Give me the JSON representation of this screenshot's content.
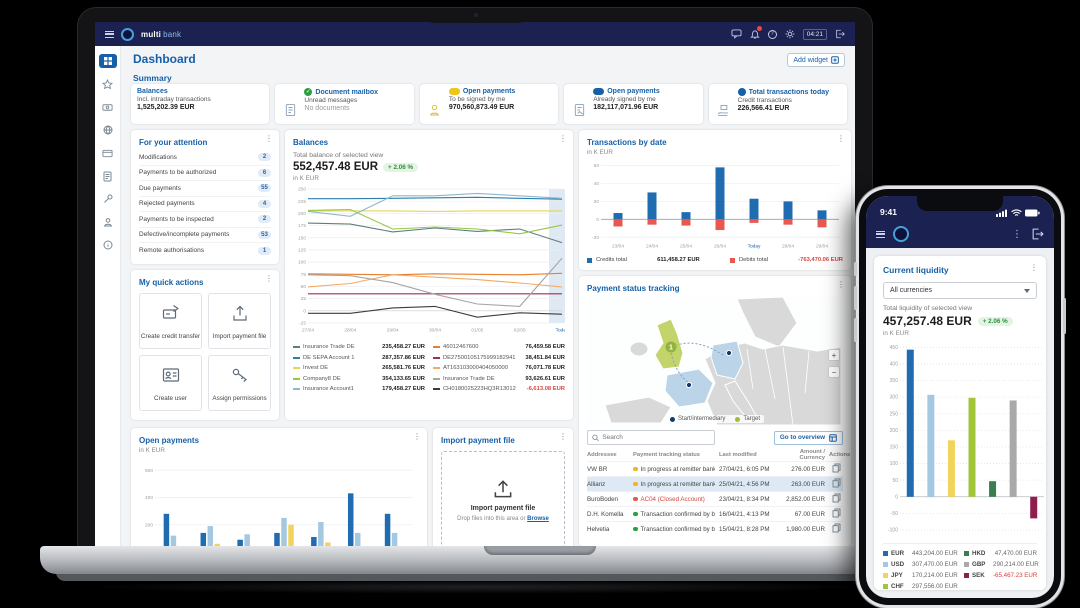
{
  "topbar": {
    "product_bold": "multi",
    "product_light": "bank",
    "timer": "04:21"
  },
  "sidebar": {
    "items": [
      "dashboard-icon",
      "star-icon",
      "cash-icon",
      "globe-icon",
      "card-icon",
      "document-icon",
      "tools-icon",
      "user-icon",
      "info-icon"
    ]
  },
  "page": {
    "title": "Dashboard",
    "add_widget_label": "Add widget",
    "summary_label": "Summary"
  },
  "summary_cards": [
    {
      "title": "Balances",
      "subtitle": "Incl. intraday transactions",
      "value": "1,525,202.39 EUR",
      "icon": "",
      "badge_color": "",
      "badge_glyph": ""
    },
    {
      "title": "Document mailbox",
      "subtitle": "Unread messages",
      "value": "No documents",
      "muted": true,
      "icon": "mailbox-document-icon",
      "badge_color": "#2e9e44",
      "badge_glyph": "✓"
    },
    {
      "title": "Open payments",
      "subtitle": "To be signed by me",
      "value": "970,560,873.49 EUR",
      "icon": "person-icon",
      "badge_color": "#f0c419",
      "badge_pill": true,
      "badge_glyph": ""
    },
    {
      "title": "Open payments",
      "subtitle": "Already signed by me",
      "value": "182,117,071.96 EUR",
      "icon": "signed-document-icon",
      "badge_color": "#1660a8",
      "badge_pill": true,
      "badge_glyph": ""
    },
    {
      "title": "Total transactions today",
      "subtitle": "Credit transactions",
      "value": "226,566.41 EUR",
      "icon": "hand-transactions-icon",
      "badge_color": "#1660a8",
      "badge_glyph": ""
    }
  ],
  "attention": {
    "title": "For your attention",
    "items": [
      {
        "label": "Modifications",
        "count": "2"
      },
      {
        "label": "Payments to be authorized",
        "count": "6"
      },
      {
        "label": "Due payments",
        "count": "55"
      },
      {
        "label": "Rejected payments",
        "count": "4"
      },
      {
        "label": "Payments to be inspected",
        "count": "2"
      },
      {
        "label": "Defective/incomplete payments",
        "count": "53"
      },
      {
        "label": "Remote authorisations",
        "count": "1"
      }
    ]
  },
  "quick_actions": {
    "title": "My quick actions",
    "items": [
      {
        "label": "Create credit transfer",
        "icon": "credit-transfer-icon"
      },
      {
        "label": "Import payment file",
        "icon": "import-file-icon"
      },
      {
        "label": "Create user",
        "icon": "create-user-icon"
      },
      {
        "label": "Assign permissions",
        "icon": "assign-permissions-icon"
      }
    ]
  },
  "balances": {
    "caption": "Total balance of selected view",
    "amount": "552,457.48 EUR",
    "change": "+ 2.06 %"
  },
  "tracking": {
    "title": "Payment status tracking",
    "legend_start": "Start/intermediary",
    "legend_target": "Target",
    "map_badge": "1",
    "search_placeholder": "Search",
    "overview_label": "Go to overview",
    "columns": [
      "Addressee",
      "Payment tracking status",
      "Last modified",
      "Amount / Currency",
      "Actions"
    ],
    "rows": [
      {
        "addressee": "VW BR",
        "status": "In progress at remitter bank Cocobank",
        "status_color": "#f0b429",
        "modified": "27/04/21, 6:05 PM",
        "amount": "276.00 EUR"
      },
      {
        "addressee": "Allianz",
        "status": "In progress at remitter bank Postbank",
        "status_color": "#f0b429",
        "modified": "25/04/21, 4:56 PM",
        "amount": "263.00 EUR",
        "highlight": true
      },
      {
        "addressee": "BuroBoden",
        "status": "AC04 (Closed Account)",
        "status_color": "#e8584e",
        "alert": true,
        "modified": "23/04/21, 8:34 PM",
        "amount": "2,852.00 EUR"
      },
      {
        "addressee": "D.H. Komella",
        "status": "Transaction confirmed by bank Rabobank",
        "status_color": "#2e9e44",
        "modified": "16/04/21, 4:13 PM",
        "amount": "67.00 EUR"
      },
      {
        "addressee": "Helvetia",
        "status": "Transaction confirmed by bank Rabobank",
        "status_color": "#2e9e44",
        "modified": "15/04/21, 8:28 PM",
        "amount": "1,980.00 EUR"
      }
    ]
  },
  "import_file": {
    "title": "Import payment file",
    "dropzone_title": "Import payment file",
    "hint": "Drop files into this area or",
    "browse": "Browse"
  },
  "phone": {
    "status_time": "9:41",
    "panel_title": "Current liquidity",
    "currency_filter": "All currencies",
    "caption": "Total liquidity of selected view",
    "amount": "457,257.48 EUR",
    "change": "+ 2.06 %"
  },
  "chart_data": [
    {
      "type": "line",
      "title": "Balances",
      "ylabel": "in K EUR",
      "x": [
        "27/04",
        "28/04",
        "29/04",
        "30/04",
        "01/05",
        "02/05",
        "Today"
      ],
      "highlight_x": "Today",
      "ylim": [
        -25,
        250
      ],
      "yticks": [
        250,
        225,
        200,
        175,
        150,
        125,
        100,
        75,
        50,
        25,
        0,
        -25
      ],
      "series": [
        {
          "name": "Insurance Trade DE",
          "color": "#5b7f7d",
          "values": [
            180,
            178,
            162,
            170,
            163,
            168,
            140
          ],
          "amount": "235,458.27 EUR"
        },
        {
          "name": "DE SEPA Account 1",
          "color": "#2e7fae",
          "values": [
            230,
            230,
            231,
            232,
            233,
            231,
            229
          ],
          "amount": "287,357.86 EUR"
        },
        {
          "name": "Invest DE",
          "color": "#ead34f",
          "values": [
            205,
            205,
            205,
            204,
            205,
            205,
            205
          ],
          "amount": "265,581.76 EUR"
        },
        {
          "name": "Company8 DE",
          "color": "#96c93f",
          "values": [
            206,
            208,
            168,
            172,
            168,
            158,
            176
          ],
          "amount": "354,133.65 EUR"
        },
        {
          "name": "Insurance Account1",
          "color": "#8fb9c9",
          "values": [
            204,
            194,
            236,
            236,
            241,
            236,
            231
          ],
          "amount": "179,458.27 EUR"
        },
        {
          "name": "46012467600",
          "color": "#e87f2e",
          "values": [
            76,
            75,
            74,
            76,
            75,
            74,
            77
          ],
          "amount": "76,459.58 EUR"
        },
        {
          "name": "DE27500105175999182941",
          "color": "#9e2b63",
          "values": [
            35,
            35,
            35,
            35,
            35,
            35,
            35
          ],
          "amount": "38,451.84 EUR"
        },
        {
          "name": "AT163103000404050000",
          "color": "#f2ab66",
          "values": [
            49,
            56,
            74,
            69,
            64,
            57,
            49
          ],
          "amount": "76,071.78 EUR"
        },
        {
          "name": "Insurance Trade DE",
          "color": "#a5a5a5",
          "values": [
            74,
            72,
            58,
            34,
            14,
            9,
            108
          ],
          "amount": "93,626.61 EUR"
        },
        {
          "name": "CH0180025223HQ3R13012",
          "color": "#3c3c3c",
          "values": [
            -5,
            -5,
            6,
            9,
            -13,
            -4,
            -7
          ],
          "amount": "-6,613.08 EUR",
          "amount_negative": true
        }
      ]
    },
    {
      "type": "bar",
      "title": "Transactions by date",
      "ylabel": "in K EUR",
      "categories": [
        "23/04",
        "24/04",
        "25/04",
        "26/04",
        "Today",
        "28/04",
        "29/04"
      ],
      "highlight_x": "Today",
      "ylim": [
        -22,
        64
      ],
      "yticks": [
        60,
        40,
        20,
        0,
        -20
      ],
      "series": [
        {
          "name": "Credits total",
          "color": "#1f6cb0",
          "values": [
            7,
            30,
            8,
            58,
            23,
            20,
            10
          ],
          "total": "611,458.27 EUR"
        },
        {
          "name": "Debits total",
          "color": "#e8584e",
          "values": [
            -8,
            -6,
            -7,
            -12,
            -4,
            -6,
            -9
          ],
          "total": "-763,470.06 EUR"
        }
      ]
    },
    {
      "type": "bar",
      "title": "Open payments",
      "ylabel": "in K EUR",
      "categories": [
        "",
        "",
        "",
        "",
        "",
        "",
        ""
      ],
      "ylim": [
        0,
        660
      ],
      "yticks": [
        600,
        400,
        200
      ],
      "series": [
        {
          "name": "series-dark-blue",
          "color": "#1f6cb0",
          "values": [
            280,
            140,
            90,
            140,
            110,
            430,
            280
          ]
        },
        {
          "name": "series-light-blue",
          "color": "#a5c8e1",
          "values": [
            120,
            190,
            130,
            250,
            220,
            140,
            140
          ]
        },
        {
          "name": "series-yellow",
          "color": "#f2d45c",
          "values": [
            40,
            60,
            40,
            200,
            70,
            0,
            40
          ]
        }
      ]
    },
    {
      "type": "bar",
      "title": "Current liquidity",
      "ylabel": "in K EUR",
      "categories": [
        "EUR",
        "USD",
        "JPY",
        "CHF",
        "HKD",
        "GBP",
        "SEK"
      ],
      "values": [
        443,
        307,
        170,
        298,
        47,
        290,
        -65
      ],
      "colors": [
        "#1f6cb0",
        "#a5c8e1",
        "#f2d45c",
        "#a3c53a",
        "#3a7d4f",
        "#a9a9a9",
        "#8f1d4e"
      ],
      "ylim": [
        -100,
        460
      ],
      "yticks": [
        450,
        400,
        350,
        300,
        250,
        200,
        150,
        100,
        50,
        0,
        -50,
        -100
      ],
      "legend": [
        {
          "code": "EUR",
          "amount": "443,204.00 EUR",
          "color": "#1f6cb0"
        },
        {
          "code": "USD",
          "amount": "307,470.00 EUR",
          "color": "#a5c8e1"
        },
        {
          "code": "JPY",
          "amount": "170,214.00 EUR",
          "color": "#f2d45c"
        },
        {
          "code": "CHF",
          "amount": "297,556.00 EUR",
          "color": "#a3c53a"
        },
        {
          "code": "HKD",
          "amount": "47,470.00 EUR",
          "color": "#3a7d4f"
        },
        {
          "code": "GBP",
          "amount": "290,214.00 EUR",
          "color": "#a9a9a9"
        },
        {
          "code": "SEK",
          "amount": "-65,467.23 EUR",
          "color": "#8f1d4e",
          "negative": true
        }
      ]
    }
  ]
}
